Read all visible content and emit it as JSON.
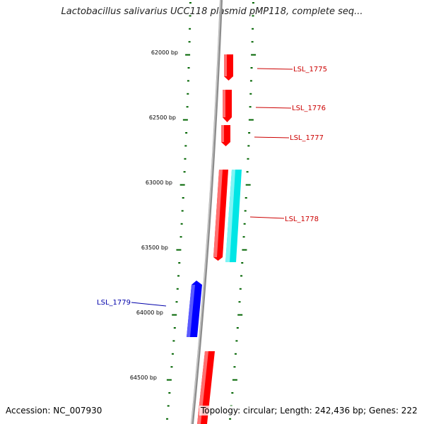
{
  "title": "Lactobacillus salivarius UCC118 plasmid pMP118, complete seq...",
  "footer": {
    "accession": "Accession: NC_007930",
    "topology": "Topology: circular; Length: 242,436 bp; Genes: 222"
  },
  "colors": {
    "forward_gene": "#ff0000",
    "reverse_gene": "#0000ff",
    "rna_gene": "#00e5e5",
    "backbone": "#8c8c8c",
    "tick": "#006400",
    "label_red": "#cc0000",
    "label_blue": "#0000aa"
  },
  "ruler_labels": [
    "62000 bp",
    "62500 bp",
    "63000 bp",
    "63500 bp",
    "64000 bp",
    "64500 bp"
  ],
  "genes": [
    {
      "name": "LSL_1775",
      "strand": "forward"
    },
    {
      "name": "LSL_1776",
      "strand": "forward"
    },
    {
      "name": "LSL_1777",
      "strand": "forward"
    },
    {
      "name": "LSL_1778",
      "strand": "forward"
    },
    {
      "name": "LSL_1779",
      "strand": "reverse"
    }
  ]
}
